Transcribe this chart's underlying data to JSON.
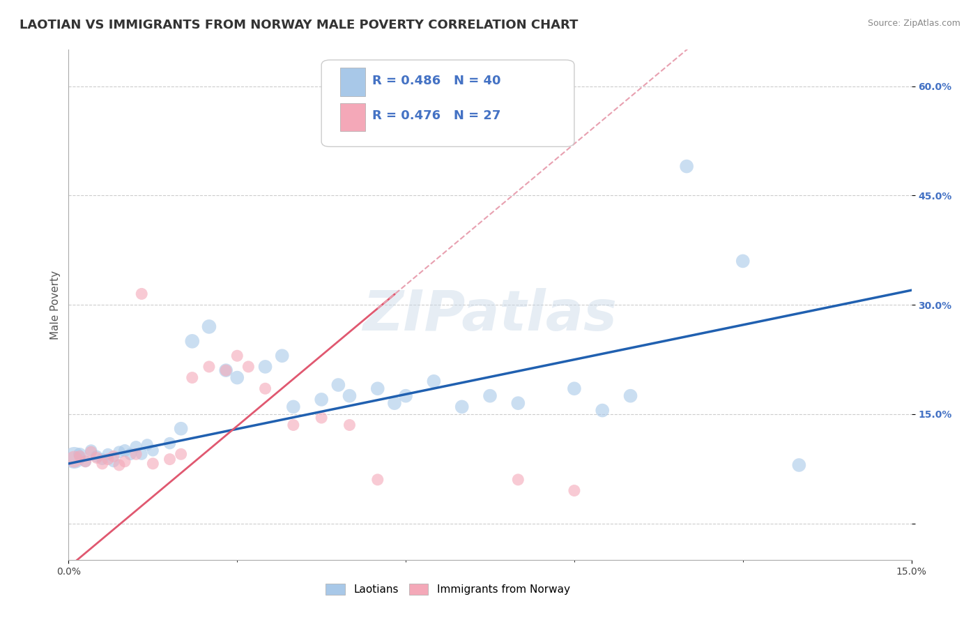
{
  "title": "LAOTIAN VS IMMIGRANTS FROM NORWAY MALE POVERTY CORRELATION CHART",
  "source": "Source: ZipAtlas.com",
  "ylabel": "Male Poverty",
  "watermark": "ZIPatlas",
  "xlim": [
    0.0,
    0.15
  ],
  "ylim": [
    -0.05,
    0.65
  ],
  "ytick_positions": [
    0.0,
    0.15,
    0.3,
    0.45,
    0.6
  ],
  "ytick_labels": [
    "",
    "15.0%",
    "30.0%",
    "45.0%",
    "60.0%"
  ],
  "laotian_color": "#a8c8e8",
  "norway_color": "#f4a8b8",
  "line_laotian_color": "#2060b0",
  "line_norway_color": "#e05870",
  "line_norway_dashed_color": "#e8a0b0",
  "grid_color": "#cccccc",
  "bg_color": "#ffffff",
  "title_fontsize": 13,
  "axis_label_fontsize": 11,
  "tick_fontsize": 10,
  "legend_fontsize": 13,
  "watermark_color": "#c8d8e8",
  "R_laotian": 0.486,
  "N_laotian": 40,
  "R_norway": 0.476,
  "N_norway": 27,
  "laotian_x": [
    0.001,
    0.002,
    0.003,
    0.004,
    0.005,
    0.006,
    0.007,
    0.008,
    0.009,
    0.01,
    0.011,
    0.012,
    0.013,
    0.014,
    0.015,
    0.018,
    0.02,
    0.022,
    0.025,
    0.028,
    0.03,
    0.035,
    0.038,
    0.04,
    0.045,
    0.048,
    0.05,
    0.055,
    0.058,
    0.06,
    0.065,
    0.07,
    0.075,
    0.08,
    0.09,
    0.095,
    0.1,
    0.11,
    0.12,
    0.13
  ],
  "laotian_y": [
    0.09,
    0.095,
    0.085,
    0.1,
    0.092,
    0.088,
    0.095,
    0.085,
    0.098,
    0.1,
    0.095,
    0.105,
    0.095,
    0.108,
    0.1,
    0.11,
    0.13,
    0.25,
    0.27,
    0.21,
    0.2,
    0.215,
    0.23,
    0.16,
    0.17,
    0.19,
    0.175,
    0.185,
    0.165,
    0.175,
    0.195,
    0.16,
    0.175,
    0.165,
    0.185,
    0.155,
    0.175,
    0.49,
    0.36,
    0.08
  ],
  "laotian_sizes": [
    500,
    180,
    150,
    160,
    160,
    150,
    150,
    150,
    160,
    170,
    160,
    160,
    150,
    150,
    150,
    160,
    200,
    220,
    220,
    200,
    200,
    200,
    200,
    200,
    200,
    200,
    200,
    200,
    200,
    200,
    200,
    200,
    200,
    200,
    200,
    200,
    200,
    200,
    200,
    200
  ],
  "norway_x": [
    0.001,
    0.002,
    0.003,
    0.004,
    0.005,
    0.006,
    0.007,
    0.008,
    0.009,
    0.01,
    0.012,
    0.013,
    0.015,
    0.018,
    0.02,
    0.022,
    0.025,
    0.028,
    0.03,
    0.032,
    0.035,
    0.04,
    0.045,
    0.05,
    0.055,
    0.08,
    0.09
  ],
  "norway_y": [
    0.088,
    0.092,
    0.085,
    0.098,
    0.09,
    0.082,
    0.088,
    0.092,
    0.08,
    0.085,
    0.095,
    0.315,
    0.082,
    0.088,
    0.095,
    0.2,
    0.215,
    0.21,
    0.23,
    0.215,
    0.185,
    0.135,
    0.145,
    0.135,
    0.06,
    0.06,
    0.045
  ],
  "norway_sizes": [
    300,
    150,
    150,
    150,
    150,
    150,
    150,
    150,
    150,
    150,
    150,
    150,
    150,
    150,
    150,
    150,
    150,
    150,
    150,
    150,
    150,
    150,
    150,
    150,
    150,
    150,
    150
  ]
}
